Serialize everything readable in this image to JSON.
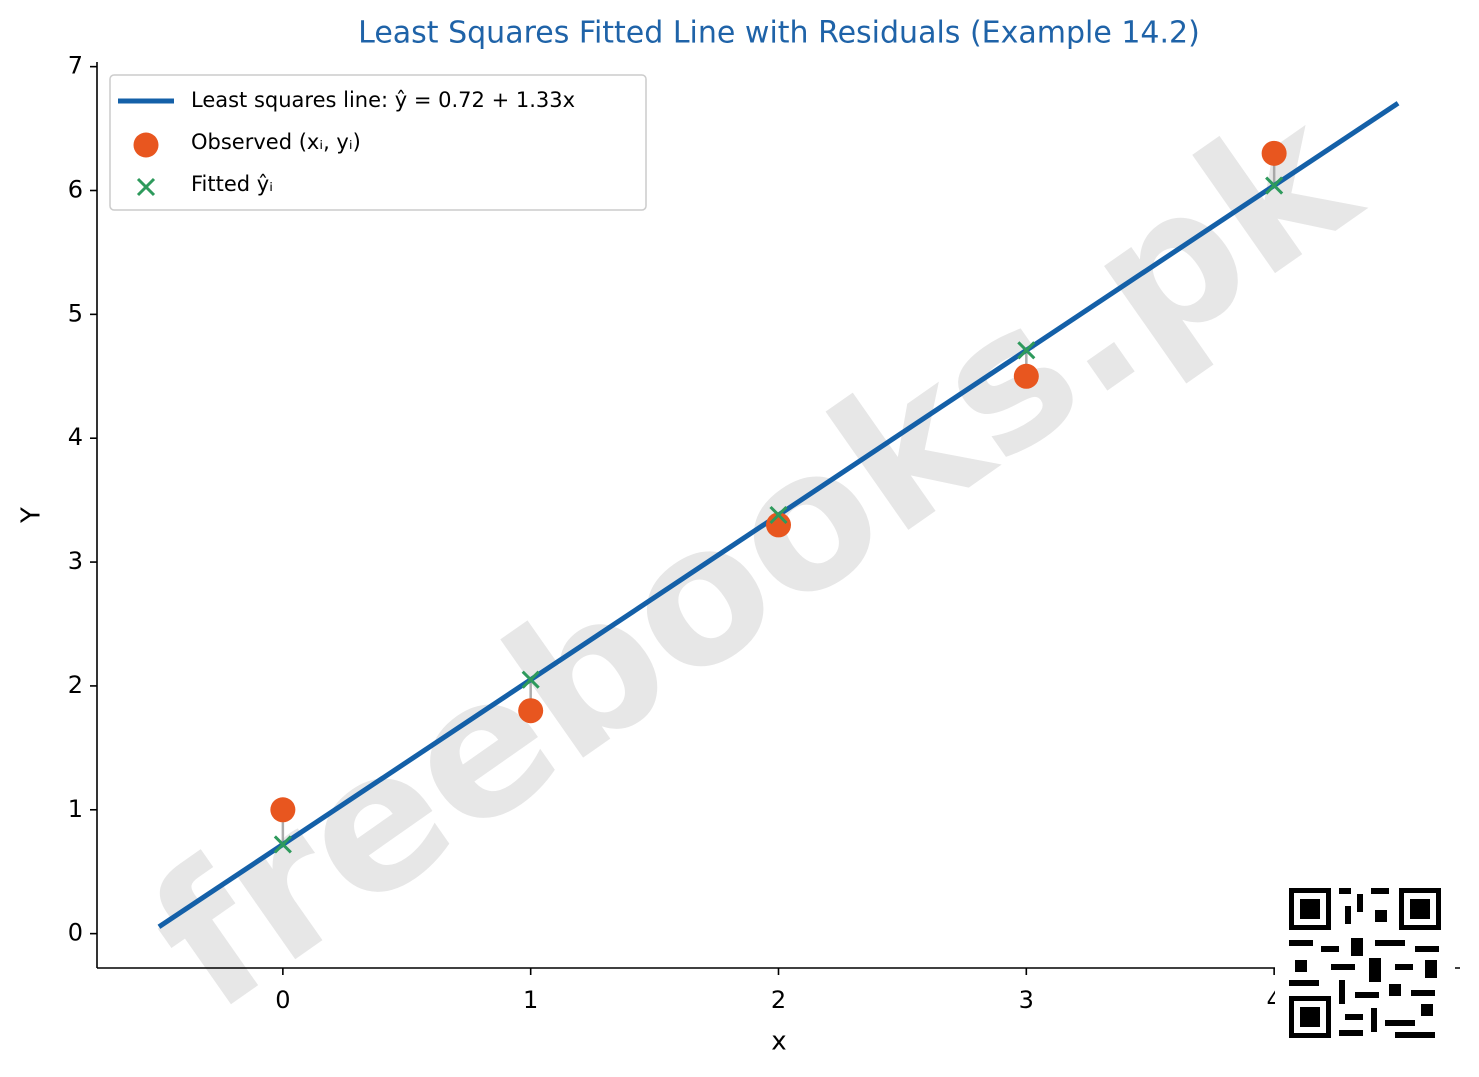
{
  "chart_data": {
    "type": "line",
    "title": "Least Squares Fitted Line with Residuals (Example 14.2)",
    "x_label": "x",
    "y_label": "Y",
    "watermark": "freebooks.pk",
    "xlim": [
      -0.75,
      4.75
    ],
    "ylim": [
      -0.2775,
      7.0375
    ],
    "xticks": [
      0,
      1,
      2,
      3,
      4
    ],
    "yticks": [
      0,
      1,
      2,
      3,
      4,
      5,
      6,
      7
    ],
    "legend": "upper left",
    "residuals": true,
    "series": [
      {
        "name": "Least squares line: ŷ = 0.72 + 1.33x",
        "type": "line",
        "color": "#1460a8",
        "x": [
          -0.5,
          4.5
        ],
        "values": [
          0.055,
          6.705
        ]
      },
      {
        "name": "Observed (xᵢ, yᵢ)",
        "type": "scatter",
        "marker": "circle",
        "color": "#e8561f",
        "x": [
          0,
          1,
          2,
          3,
          4
        ],
        "values": [
          1,
          1.8,
          3.3,
          4.5,
          6.3
        ]
      },
      {
        "name": "Fitted ŷᵢ",
        "type": "scatter",
        "marker": "cross",
        "color": "#2e9a5c",
        "x": [
          0,
          1,
          2,
          3,
          4
        ],
        "values": [
          0.72,
          2.05,
          3.38,
          4.71,
          6.04
        ]
      }
    ]
  }
}
